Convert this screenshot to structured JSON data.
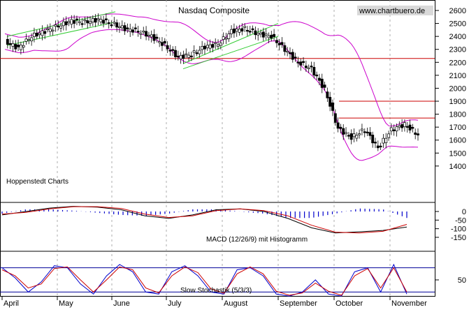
{
  "header": {
    "title": "Nasdaq Composite",
    "watermark": "www.chartbuero.de",
    "source": "Hoppenstedt Charts"
  },
  "colors": {
    "background": "#ffffff",
    "price": "#000000",
    "bollinger": "#cc00cc",
    "hline": "#cc0000",
    "trend_channel": "#33cc33",
    "macd_line": "#000000",
    "signal_line": "#cc0000",
    "histogram": "#0000cc",
    "stoch_k": "#0000cc",
    "stoch_d": "#cc0000",
    "stoch_band": "#000099",
    "grid": "#999999"
  },
  "chart_data": [
    {
      "type": "candlestick",
      "title": "Nasdaq Composite",
      "ylim": [
        1300,
        2700
      ],
      "y_ticks": [
        1400,
        1500,
        1600,
        1700,
        1800,
        1900,
        2000,
        2100,
        2200,
        2300,
        2400,
        2500,
        2600
      ],
      "x_labels": [
        "April",
        "May",
        "June",
        "July",
        "August",
        "September",
        "October",
        "November"
      ],
      "grid": "vertical dashed at month starts",
      "close_weekly": [
        {
          "week": 1,
          "close": 2360
        },
        {
          "week": 2,
          "close": 2310
        },
        {
          "week": 3,
          "close": 2400
        },
        {
          "week": 4,
          "close": 2440
        },
        {
          "week": 5,
          "close": 2480
        },
        {
          "week": 6,
          "close": 2520
        },
        {
          "week": 7,
          "close": 2510
        },
        {
          "week": 8,
          "close": 2530
        },
        {
          "week": 9,
          "close": 2500
        },
        {
          "week": 10,
          "close": 2460
        },
        {
          "week": 11,
          "close": 2440
        },
        {
          "week": 12,
          "close": 2400
        },
        {
          "week": 13,
          "close": 2330
        },
        {
          "week": 14,
          "close": 2240
        },
        {
          "week": 15,
          "close": 2260
        },
        {
          "week": 16,
          "close": 2320
        },
        {
          "week": 17,
          "close": 2340
        },
        {
          "week": 18,
          "close": 2440
        },
        {
          "week": 19,
          "close": 2460
        },
        {
          "week": 20,
          "close": 2420
        },
        {
          "week": 21,
          "close": 2400
        },
        {
          "week": 22,
          "close": 2300
        },
        {
          "week": 23,
          "close": 2200
        },
        {
          "week": 24,
          "close": 2150
        },
        {
          "week": 25,
          "close": 1990
        },
        {
          "week": 26,
          "close": 1690
        },
        {
          "week": 27,
          "close": 1620
        },
        {
          "week": 28,
          "close": 1680
        },
        {
          "week": 29,
          "close": 1540
        },
        {
          "week": 30,
          "close": 1680
        },
        {
          "week": 31,
          "close": 1720
        },
        {
          "week": 32,
          "close": 1640
        }
      ],
      "horizontal_lines": [
        2230,
        1900,
        1770
      ],
      "indicators": [
        "Bollinger Bands",
        "Trend channels"
      ]
    },
    {
      "type": "line",
      "title": "MACD (12/26/9) mit Histogramm",
      "ylim": [
        -150,
        40
      ],
      "y_ticks": [
        0,
        -50,
        -100,
        -150
      ],
      "series": [
        {
          "name": "MACD",
          "values": [
            -20,
            0,
            20,
            30,
            25,
            10,
            -25,
            -40,
            -20,
            10,
            15,
            0,
            -40,
            -95,
            -125,
            -118,
            -110,
            -90
          ]
        },
        {
          "name": "Signal",
          "values": [
            -15,
            -5,
            15,
            28,
            28,
            18,
            -15,
            -35,
            -25,
            5,
            15,
            5,
            -25,
            -80,
            -120,
            -125,
            -115,
            -75
          ]
        }
      ]
    },
    {
      "type": "line",
      "title": "Slow Stochastik (5/3/3)",
      "ylim": [
        0,
        100
      ],
      "y_ticks": [
        50
      ],
      "bands": [
        80,
        20
      ],
      "series": [
        {
          "name": "%K",
          "values": [
            80,
            55,
            20,
            45,
            85,
            80,
            40,
            15,
            60,
            88,
            70,
            20,
            15,
            70,
            85,
            60,
            20,
            15,
            75,
            80,
            60,
            15,
            10,
            20,
            50,
            15,
            10,
            70,
            80,
            20,
            88,
            15
          ]
        },
        {
          "name": "%D",
          "values": [
            75,
            60,
            30,
            40,
            78,
            82,
            50,
            20,
            50,
            82,
            75,
            30,
            18,
            60,
            82,
            68,
            28,
            17,
            65,
            82,
            65,
            22,
            12,
            18,
            42,
            22,
            12,
            60,
            78,
            30,
            80,
            20
          ]
        }
      ]
    }
  ]
}
